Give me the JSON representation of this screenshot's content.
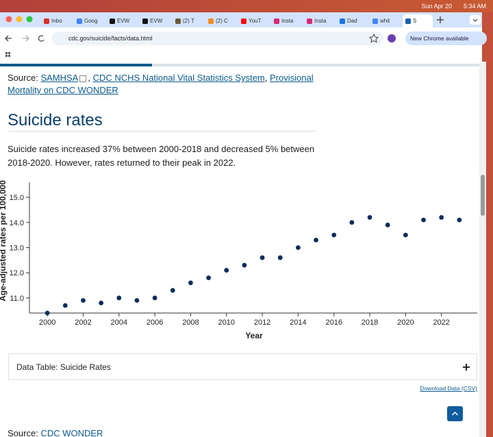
{
  "menubar": {
    "date": "Sun Apr 20",
    "time": "5:34 AM"
  },
  "tabs": [
    "Inbo",
    "Goog",
    "EVW",
    "EVW",
    "(2) T",
    "(2) C",
    "YouT",
    "Insta",
    "Insta",
    "Dad",
    "whit",
    "S"
  ],
  "address": "cdc.gov/suicide/facts/data.html",
  "update_button": "New Chrome available",
  "source_top": {
    "label": "Source:",
    "links": [
      "SAMHSA",
      "CDC NCHS National Vital Statistics System",
      "Provisional Mortality on CDC WONDER"
    ],
    "separator": ","
  },
  "heading": "Suicide rates",
  "paragraph": "Suicide rates increased 37% between 2000-2018 and decreased 5% between 2018-2020. However, rates returned to their peak in 2022.",
  "chart_data": {
    "type": "scatter",
    "color": "#0b2d5b",
    "x": [
      2000,
      2001,
      2002,
      2003,
      2004,
      2005,
      2006,
      2007,
      2008,
      2009,
      2010,
      2011,
      2012,
      2013,
      2014,
      2015,
      2016,
      2017,
      2018,
      2019,
      2020,
      2021,
      2022,
      2023
    ],
    "values": [
      10.4,
      10.7,
      10.9,
      10.8,
      11.0,
      10.9,
      11.0,
      11.3,
      11.6,
      11.8,
      12.1,
      12.3,
      12.6,
      12.6,
      13.0,
      13.3,
      13.5,
      14.0,
      14.2,
      13.9,
      13.5,
      14.1,
      14.2,
      14.1
    ],
    "xlim": [
      1999,
      2024
    ],
    "ylim": [
      10.4,
      15.6
    ],
    "xticks": [
      2000,
      2002,
      2004,
      2006,
      2008,
      2010,
      2012,
      2014,
      2016,
      2018,
      2020,
      2022
    ],
    "yticks": [
      {
        "value": 11,
        "label": "11.0"
      },
      {
        "value": 12,
        "label": "12.0"
      },
      {
        "value": 13,
        "label": "13.0"
      },
      {
        "value": 14,
        "label": "14.0"
      },
      {
        "value": 15,
        "label": "15.0"
      }
    ],
    "xlabel": "Year",
    "ylabel": "Age-adjusted rates per 100,000"
  },
  "accordion": "Data Table: Suicide Rates",
  "download": "Download Data (CSV)",
  "source_bottom": {
    "label": "Source:",
    "link": "CDC WONDER"
  }
}
